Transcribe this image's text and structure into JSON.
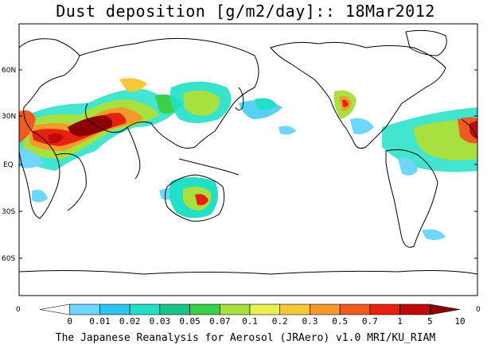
{
  "title": "Dust deposition [g/m2/day]:: 18Mar2012",
  "footer": "The Japanese Reanalysis for Aerosol (JRAero) v1.0 MRI/KU_RIAM",
  "map": {
    "lat_labels": [
      "60N",
      "30N",
      "EQ",
      "30S",
      "60S"
    ],
    "lon_edge_labels": [
      "0",
      "0"
    ]
  },
  "colorbar": {
    "labels": [
      "0",
      "0.01",
      "0.02",
      "0.03",
      "0.05",
      "0.07",
      "0.1",
      "0.2",
      "0.3",
      "0.5",
      "0.7",
      "1",
      "5",
      "10"
    ],
    "colors": [
      "#ffffff",
      "#6fd6ff",
      "#2ec4f0",
      "#22e0c6",
      "#16c48a",
      "#3ad04a",
      "#a8e040",
      "#e8f050",
      "#f4c838",
      "#f49a2c",
      "#f05a20",
      "#e82010",
      "#c00808",
      "#8c0000"
    ]
  }
}
